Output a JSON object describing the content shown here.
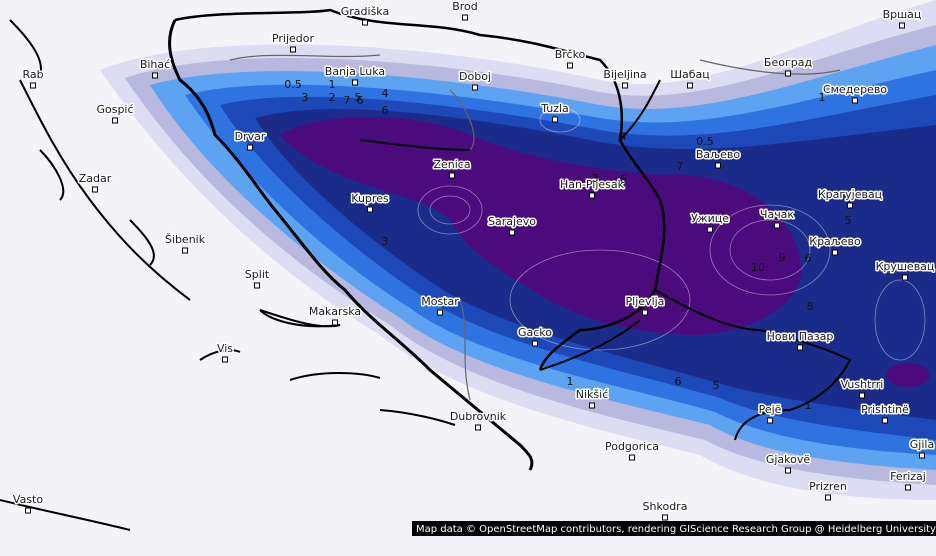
{
  "map": {
    "cities": [
      "Gradiška",
      "Brod",
      "Prijedor",
      "Bihać",
      "Banja Luka",
      "Doboj",
      "Brčko",
      "Bijeljina",
      "Шабац",
      "Београд",
      "Смедерево",
      "Вршац",
      "Rab",
      "Gospić",
      "Drvar",
      "Tuzla",
      "Zenica",
      "Han-Pijesak",
      "Ваљево",
      "Zadar",
      "Kupres",
      "Sarajevo",
      "Ужице",
      "Чачак",
      "Крагујевац",
      "Šibenik",
      "Краљево",
      "Крушевац",
      "Split",
      "Mostar",
      "Pljevlja",
      "Makarska",
      "Gacko",
      "Нови Пазар",
      "Vis",
      "Nikšić",
      "Vushtrri",
      "Pejë",
      "Prishtinë",
      "Dubrovnik",
      "Podgorica",
      "Gjakovë",
      "Gjila",
      "Ferizaj",
      "Prizren",
      "Vasto",
      "Shkodra"
    ],
    "contour_labels": [
      0.5,
      1,
      3,
      2,
      7,
      5,
      4,
      6,
      6,
      4,
      0.5,
      7,
      3,
      6,
      3,
      10,
      9,
      6,
      5,
      8,
      1,
      6,
      5,
      1,
      1
    ],
    "attribution": "Map data © OpenStreetMap contributors, rendering GIScience Research Group @ Heidelberg University"
  }
}
